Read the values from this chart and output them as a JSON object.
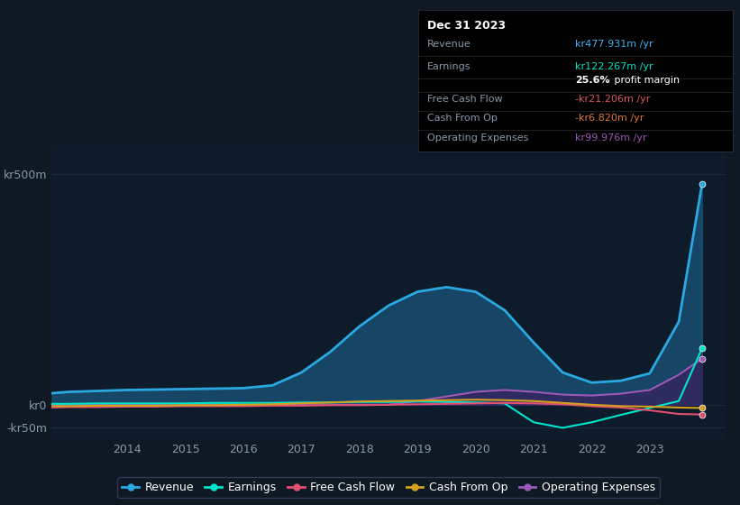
{
  "background_color": "#0e1923",
  "plot_bg_color": "#0d1b2a",
  "grid_color": "#1e3050",
  "title_box_bg": "#000000",
  "title_box_border": "#333344",
  "yticks": [
    "kr500m",
    "kr0",
    "-kr50m"
  ],
  "ytick_values": [
    500,
    0,
    -50
  ],
  "ylim": [
    -75,
    560
  ],
  "xlim": [
    2012.7,
    2024.3
  ],
  "xticks": [
    2014,
    2015,
    2016,
    2017,
    2018,
    2019,
    2020,
    2021,
    2022,
    2023
  ],
  "title_box": {
    "date": "Dec 31 2023",
    "rows": [
      {
        "label": "Revenue",
        "value": "kr477.931m /yr",
        "value_color": "#3ab4f2"
      },
      {
        "label": "Earnings",
        "value": "kr122.267m /yr",
        "value_color": "#00e5cc"
      },
      {
        "label": "",
        "value": "25.6% profit margin",
        "value_color": "#ffffff"
      },
      {
        "label": "Free Cash Flow",
        "value": "-kr21.206m /yr",
        "value_color": "#e05560"
      },
      {
        "label": "Cash From Op",
        "value": "-kr6.820m /yr",
        "value_color": "#e07830"
      },
      {
        "label": "Operating Expenses",
        "value": "kr99.976m /yr",
        "value_color": "#9b59b6"
      }
    ]
  },
  "series": {
    "Revenue": {
      "color": "#2aa8e0",
      "fill_color": "#1a5880",
      "fill_alpha": 0.7,
      "linewidth": 2.0,
      "x": [
        2012.7,
        2013.0,
        2013.5,
        2014.0,
        2014.5,
        2015.0,
        2015.5,
        2016.0,
        2016.5,
        2017.0,
        2017.5,
        2018.0,
        2018.5,
        2019.0,
        2019.5,
        2020.0,
        2020.5,
        2021.0,
        2021.5,
        2022.0,
        2022.5,
        2023.0,
        2023.5,
        2023.9
      ],
      "y": [
        25,
        28,
        30,
        32,
        33,
        34,
        35,
        36,
        42,
        70,
        115,
        170,
        215,
        245,
        255,
        245,
        205,
        135,
        70,
        48,
        52,
        68,
        180,
        478
      ]
    },
    "Earnings": {
      "color": "#00e5cc",
      "linewidth": 1.5,
      "x": [
        2012.7,
        2013.0,
        2013.5,
        2014.0,
        2014.5,
        2015.0,
        2015.5,
        2016.0,
        2016.5,
        2017.0,
        2017.5,
        2018.0,
        2018.5,
        2019.0,
        2019.5,
        2020.0,
        2020.5,
        2021.0,
        2021.5,
        2022.0,
        2022.5,
        2023.0,
        2023.5,
        2023.9
      ],
      "y": [
        2,
        2,
        3,
        3,
        3,
        3,
        4,
        4,
        4,
        5,
        5,
        6,
        6,
        7,
        6,
        5,
        3,
        -38,
        -50,
        -38,
        -22,
        -7,
        8,
        122
      ]
    },
    "FreeCashFlow": {
      "color": "#e05070",
      "linewidth": 1.5,
      "x": [
        2012.7,
        2013.0,
        2013.5,
        2014.0,
        2014.5,
        2015.0,
        2015.5,
        2016.0,
        2016.5,
        2017.0,
        2017.5,
        2018.0,
        2018.5,
        2019.0,
        2019.5,
        2020.0,
        2020.5,
        2021.0,
        2021.5,
        2022.0,
        2022.5,
        2023.0,
        2023.5,
        2023.9
      ],
      "y": [
        -6,
        -5,
        -5,
        -4,
        -4,
        -3,
        -3,
        -3,
        -2,
        -2,
        -1,
        -1,
        0,
        1,
        2,
        3,
        4,
        3,
        1,
        -3,
        -6,
        -12,
        -20,
        -21
      ]
    },
    "CashFromOp": {
      "color": "#d4a020",
      "linewidth": 1.5,
      "x": [
        2012.7,
        2013.0,
        2013.5,
        2014.0,
        2014.5,
        2015.0,
        2015.5,
        2016.0,
        2016.5,
        2017.0,
        2017.5,
        2018.0,
        2018.5,
        2019.0,
        2019.5,
        2020.0,
        2020.5,
        2021.0,
        2021.5,
        2022.0,
        2022.5,
        2023.0,
        2023.5,
        2023.9
      ],
      "y": [
        -3,
        -3,
        -2,
        -2,
        -2,
        -1,
        -1,
        0,
        1,
        3,
        5,
        7,
        8,
        9,
        10,
        11,
        10,
        8,
        4,
        0,
        -3,
        -4,
        -6,
        -7
      ]
    },
    "OperatingExpenses": {
      "color": "#9b59b6",
      "fill_color": "#3d1a5c",
      "fill_alpha": 0.6,
      "linewidth": 1.5,
      "x": [
        2012.7,
        2013.0,
        2013.5,
        2014.0,
        2014.5,
        2015.0,
        2015.5,
        2016.0,
        2016.5,
        2017.0,
        2017.5,
        2018.0,
        2018.5,
        2019.0,
        2019.5,
        2020.0,
        2020.5,
        2021.0,
        2021.5,
        2022.0,
        2022.5,
        2023.0,
        2023.5,
        2023.9
      ],
      "y": [
        0,
        0,
        0,
        0,
        0,
        0,
        0,
        0,
        0,
        0,
        0,
        0,
        0,
        8,
        18,
        28,
        32,
        28,
        22,
        20,
        24,
        32,
        65,
        100
      ]
    }
  },
  "legend": [
    {
      "label": "Revenue",
      "color": "#2aa8e0"
    },
    {
      "label": "Earnings",
      "color": "#00e5cc"
    },
    {
      "label": "Free Cash Flow",
      "color": "#e05070"
    },
    {
      "label": "Cash From Op",
      "color": "#d4a020"
    },
    {
      "label": "Operating Expenses",
      "color": "#9b59b6"
    }
  ],
  "dot_x": 2023.9,
  "dot_y": {
    "Revenue": 478,
    "Earnings": 122,
    "FreeCashFlow": -21,
    "CashFromOp": -7,
    "OperatingExpenses": 100
  }
}
